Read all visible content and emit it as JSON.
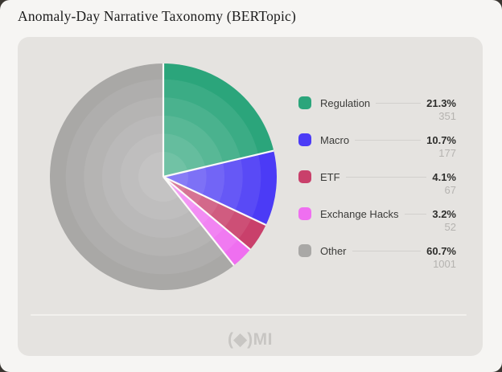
{
  "page": {
    "title": "Anomaly-Day Narrative Taxonomy (BERTopic)"
  },
  "footer": {
    "logo_text": "(◆)MI"
  },
  "colors": {
    "page_bg": "#f6f5f3",
    "card_bg": "#e5e3e0",
    "title_text": "#1c1c1c",
    "label_text": "#3b3b39",
    "pct_text": "#2e2e2c",
    "count_text": "#b5b3b0",
    "legend_line": "#d2d0cd",
    "divider": "#f2f1ee",
    "logo_text_color": "#c8c6c3",
    "slice_border": "#fbfaf8"
  },
  "chart_data": {
    "type": "pie",
    "title": "Anomaly-Day Narrative Taxonomy (BERTopic)",
    "start_angle_deg": 0,
    "direction": "clockwise",
    "legend_position": "right",
    "slices": [
      {
        "label": "Regulation",
        "percent": 21.3,
        "count": 351,
        "color": "#2ba57b"
      },
      {
        "label": "Macro",
        "percent": 10.7,
        "count": 177,
        "color": "#4b3bf6"
      },
      {
        "label": "ETF",
        "percent": 4.1,
        "count": 67,
        "color": "#c9406b"
      },
      {
        "label": "Exchange Hacks",
        "percent": 3.2,
        "count": 52,
        "color": "#ef6ff0"
      },
      {
        "label": "Other",
        "percent": 60.7,
        "count": 1001,
        "color": "#a9a8a6"
      }
    ]
  }
}
